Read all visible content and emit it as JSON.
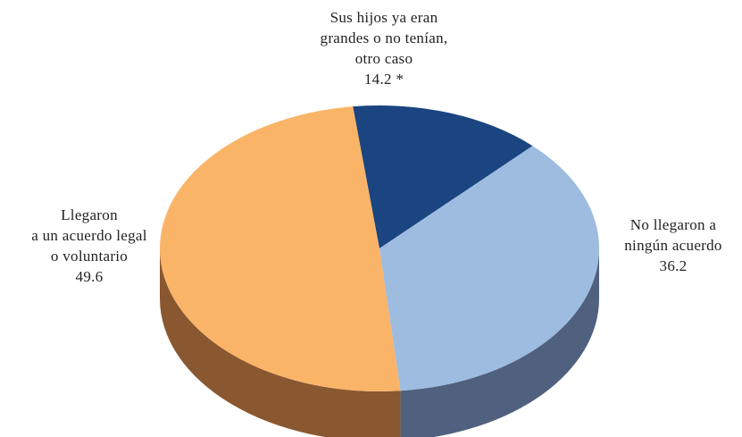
{
  "chart_data": {
    "type": "pie",
    "title": "",
    "style": "3d",
    "slices": [
      {
        "name": "Llegaron a un acuerdo legal o voluntario",
        "value": 49.6,
        "label_lines": [
          "Llegaron",
          "a un acuerdo legal",
          "o voluntario"
        ],
        "value_text": "49.6",
        "color": "#FAB468",
        "side_color": "#8A5830"
      },
      {
        "name": "Sus hijos ya eran grandes o no tenían, otro caso",
        "value": 14.2,
        "label_lines": [
          "Sus hijos ya eran",
          "grandes o no tenían,",
          "otro caso"
        ],
        "value_text": "14.2 *",
        "color": "#1A4580",
        "side_color": "#0F2A50"
      },
      {
        "name": "No llegaron a ningún acuerdo",
        "value": 36.2,
        "label_lines": [
          "No llegaron a",
          "ningún acuerdo"
        ],
        "value_text": "36.2",
        "color": "#9DBCE0",
        "side_color": "#4F617F"
      }
    ]
  }
}
